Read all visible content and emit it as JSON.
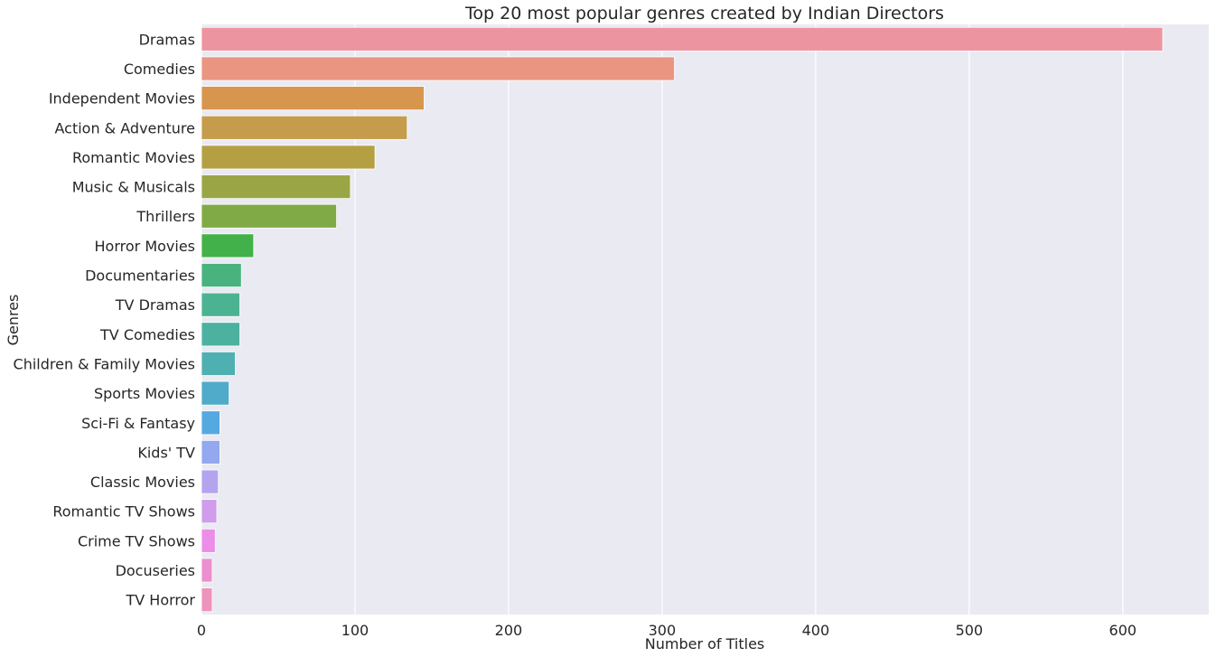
{
  "chart_data": {
    "type": "bar",
    "orientation": "horizontal",
    "title": "Top 20 most popular genres created by Indian Directors",
    "xlabel": "Number of Titles",
    "ylabel": "Genres",
    "xlim": [
      0,
      656
    ],
    "xticks": [
      "0",
      "100",
      "200",
      "300",
      "400",
      "500",
      "600"
    ],
    "grid": true,
    "legend": "none",
    "categories": [
      "Dramas",
      "Comedies",
      "Independent Movies",
      "Action & Adventure",
      "Romantic Movies",
      "Music & Musicals",
      "Thrillers",
      "Horror Movies",
      "Documentaries",
      "TV Dramas",
      "TV Comedies",
      "Children & Family Movies",
      "Sports Movies",
      "Sci-Fi & Fantasy",
      "Kids' TV",
      "Classic Movies",
      "Romantic TV Shows",
      "Crime TV Shows",
      "Docuseries",
      "TV Horror"
    ],
    "values": [
      626,
      308,
      145,
      134,
      113,
      97,
      88,
      34,
      26,
      25,
      25,
      22,
      18,
      12,
      12,
      11,
      10,
      9,
      7,
      7
    ],
    "colors": [
      "#ec95a0",
      "#e99582",
      "#d7954d",
      "#c49c4c",
      "#b4a043",
      "#9aa645",
      "#80aa45",
      "#43b149",
      "#48b37e",
      "#4bb391",
      "#4cb29f",
      "#4eb0b1",
      "#4fabc9",
      "#56a8e1",
      "#93a8ee",
      "#b4a4ee",
      "#cf9dea",
      "#ec8ee8",
      "#ec8fce",
      "#ee93bb"
    ]
  }
}
